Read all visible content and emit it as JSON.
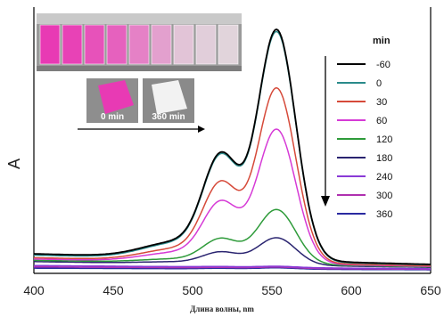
{
  "chart_data": {
    "type": "line",
    "title": "",
    "xlabel": "Длина волны, nm",
    "ylabel": "A",
    "xlim": [
      400,
      650
    ],
    "ylim": [
      0,
      1.0
    ],
    "xticks": [
      "400",
      "450",
      "500",
      "550",
      "600",
      "650"
    ],
    "legend_title": "min",
    "legend_placement": "right",
    "grid": false,
    "series": [
      {
        "name": "-60",
        "color": "#000000",
        "peak": 0.95,
        "base": 0.065
      },
      {
        "name": "0",
        "color": "#2a8a8a",
        "peak": 0.94,
        "base": 0.06
      },
      {
        "name": "30",
        "color": "#d64a3a",
        "peak": 0.72,
        "base": 0.05
      },
      {
        "name": "60",
        "color": "#d63ad6",
        "peak": 0.56,
        "base": 0.045
      },
      {
        "name": "120",
        "color": "#2e9b3a",
        "peak": 0.25,
        "base": 0.04
      },
      {
        "name": "180",
        "color": "#2a2470",
        "peak": 0.14,
        "base": 0.035
      },
      {
        "name": "240",
        "color": "#8a3ad6",
        "peak": 0.025,
        "base": 0.02
      },
      {
        "name": "300",
        "color": "#b030b0",
        "peak": 0.02,
        "base": 0.015
      },
      {
        "name": "360",
        "color": "#2a2aa0",
        "peak": 0.015,
        "base": 0.01
      }
    ],
    "arrow": "down",
    "inset": {
      "vials_count": 9,
      "film_before_label": "0 min",
      "film_after_label": "360 min"
    }
  },
  "colors": {
    "magenta": "#e83ab4",
    "arrow": "#000000"
  }
}
